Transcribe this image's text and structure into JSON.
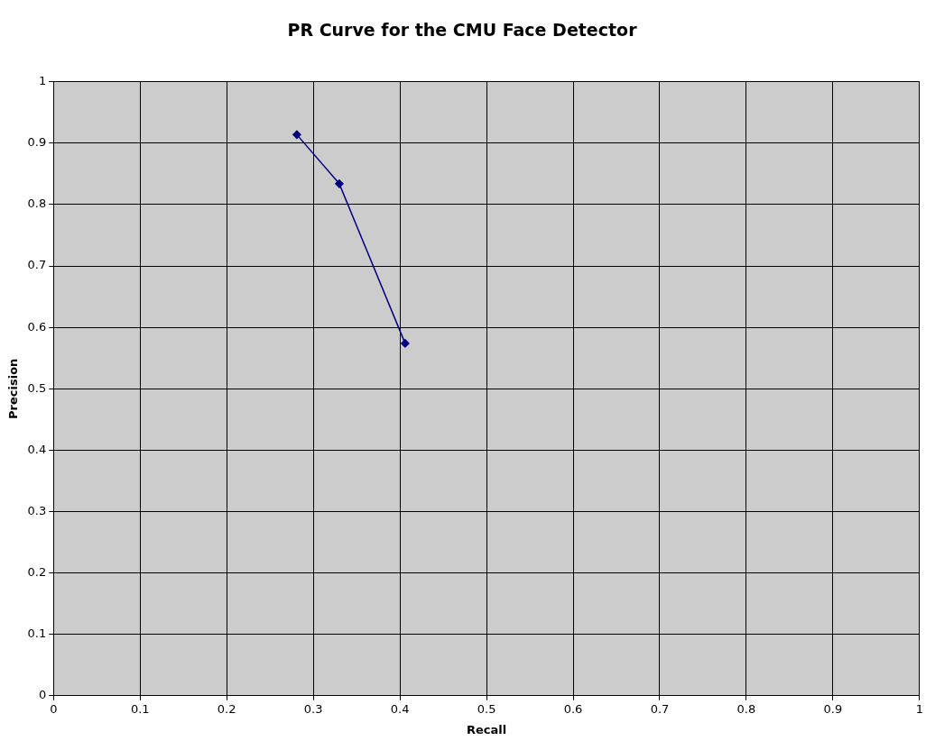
{
  "chart_data": {
    "type": "line",
    "title": "PR Curve for the CMU Face Detector",
    "xlabel": "Recall",
    "ylabel": "Precision",
    "x": [
      0.281,
      0.33,
      0.406
    ],
    "series": [
      {
        "color": "#000080",
        "values": [
          0.914,
          0.834,
          0.574
        ]
      }
    ],
    "xlim": [
      0,
      1
    ],
    "xticks": [
      0,
      0.1,
      0.2,
      0.3,
      0.4,
      0.5,
      0.6,
      0.7,
      0.8,
      0.9,
      1
    ],
    "ylim": [
      0,
      1
    ],
    "yticks": [
      0,
      0.1,
      0.2,
      0.3,
      0.4,
      0.5,
      0.6,
      0.7,
      0.8,
      0.9,
      1
    ],
    "grid": true,
    "legend": false,
    "marker": "diamond",
    "line_style": "solid"
  }
}
